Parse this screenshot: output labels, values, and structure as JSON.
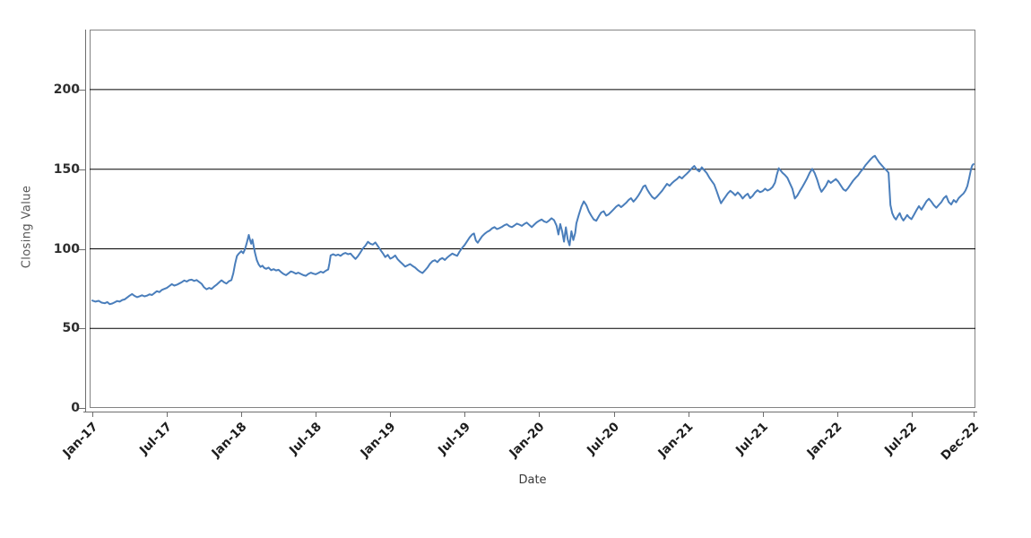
{
  "chart_data": {
    "type": "line",
    "title": "",
    "xlabel": "Date",
    "ylabel": "Closing Value",
    "legend": "none",
    "grid": "horizontal-only",
    "series_name": "Closing Value",
    "line_color": "#4a7ebb",
    "grid_color": "#000000",
    "frame_color": "#848484",
    "axis_color": "#6e6e6e",
    "x_unit": "months since Jan-2017",
    "xlim": [
      -0.22,
      71.15
    ],
    "ylim": [
      0,
      237.7
    ],
    "y_ticks": [
      {
        "v": 0,
        "label": "0"
      },
      {
        "v": 50,
        "label": "50"
      },
      {
        "v": 100,
        "label": "100"
      },
      {
        "v": 150,
        "label": "150"
      },
      {
        "v": 200,
        "label": "200"
      }
    ],
    "y_gridlines": [
      50,
      100,
      150,
      200
    ],
    "x_ticks": [
      {
        "m": 0,
        "label": "Jan-17"
      },
      {
        "m": 6,
        "label": "Jul-17"
      },
      {
        "m": 12,
        "label": "Jan-18"
      },
      {
        "m": 18,
        "label": "Jul-18"
      },
      {
        "m": 24,
        "label": "Jan-19"
      },
      {
        "m": 30,
        "label": "Jul-19"
      },
      {
        "m": 36,
        "label": "Jan-20"
      },
      {
        "m": 42,
        "label": "Jul-20"
      },
      {
        "m": 48,
        "label": "Jan-21"
      },
      {
        "m": 54,
        "label": "Jul-21"
      },
      {
        "m": 60,
        "label": "Jan-22"
      },
      {
        "m": 66,
        "label": "Jul-22"
      },
      {
        "m": 71,
        "label": "Dec-22"
      }
    ],
    "points": [
      [
        0,
        67.5
      ],
      [
        0.25,
        66.8
      ],
      [
        0.5,
        67.3
      ],
      [
        0.75,
        66.2
      ],
      [
        1,
        65.8
      ],
      [
        1.2,
        66.5
      ],
      [
        1.4,
        65.2
      ],
      [
        1.6,
        65.6
      ],
      [
        1.8,
        66.4
      ],
      [
        2,
        67.2
      ],
      [
        2.2,
        66.8
      ],
      [
        2.4,
        67.8
      ],
      [
        2.6,
        68.2
      ],
      [
        2.8,
        69.4
      ],
      [
        3,
        70.6
      ],
      [
        3.2,
        71.6
      ],
      [
        3.4,
        70.4
      ],
      [
        3.6,
        69.6
      ],
      [
        3.8,
        70.2
      ],
      [
        4,
        70.8
      ],
      [
        4.2,
        70.1
      ],
      [
        4.4,
        70.6
      ],
      [
        4.6,
        71.4
      ],
      [
        4.8,
        71
      ],
      [
        5,
        72.2
      ],
      [
        5.2,
        73.4
      ],
      [
        5.4,
        72.8
      ],
      [
        5.6,
        74.2
      ],
      [
        5.8,
        74.8
      ],
      [
        6,
        75.4
      ],
      [
        6.2,
        76.6
      ],
      [
        6.4,
        77.8
      ],
      [
        6.6,
        76.9
      ],
      [
        6.8,
        77.4
      ],
      [
        7,
        78.2
      ],
      [
        7.2,
        79
      ],
      [
        7.4,
        80.1
      ],
      [
        7.6,
        79.4
      ],
      [
        7.8,
        80.3
      ],
      [
        8,
        80.6
      ],
      [
        8.2,
        79.8
      ],
      [
        8.4,
        80.4
      ],
      [
        8.6,
        79.2
      ],
      [
        8.8,
        78
      ],
      [
        9,
        75.8
      ],
      [
        9.2,
        74.6
      ],
      [
        9.4,
        75.4
      ],
      [
        9.6,
        74.8
      ],
      [
        9.8,
        76.2
      ],
      [
        10,
        77.4
      ],
      [
        10.2,
        78.8
      ],
      [
        10.4,
        80.2
      ],
      [
        10.6,
        79
      ],
      [
        10.8,
        78.2
      ],
      [
        11,
        79.6
      ],
      [
        11.2,
        80.4
      ],
      [
        11.35,
        84.5
      ],
      [
        11.5,
        90.5
      ],
      [
        11.65,
        95.5
      ],
      [
        11.8,
        97
      ],
      [
        12,
        98.5
      ],
      [
        12.15,
        97.2
      ],
      [
        12.3,
        99.8
      ],
      [
        12.45,
        104
      ],
      [
        12.6,
        108.7
      ],
      [
        12.7,
        105.5
      ],
      [
        12.8,
        103.2
      ],
      [
        12.9,
        105.8
      ],
      [
        13,
        101.5
      ],
      [
        13.1,
        97.5
      ],
      [
        13.25,
        92.8
      ],
      [
        13.4,
        90.2
      ],
      [
        13.55,
        88.6
      ],
      [
        13.7,
        89.4
      ],
      [
        13.85,
        88
      ],
      [
        14,
        87.4
      ],
      [
        14.2,
        88.2
      ],
      [
        14.4,
        86.6
      ],
      [
        14.6,
        87.2
      ],
      [
        14.8,
        86.4
      ],
      [
        15,
        86.8
      ],
      [
        15.2,
        85.4
      ],
      [
        15.4,
        84.2
      ],
      [
        15.6,
        83.4
      ],
      [
        15.8,
        84.6
      ],
      [
        16,
        85.8
      ],
      [
        16.2,
        85.2
      ],
      [
        16.4,
        84.4
      ],
      [
        16.6,
        85
      ],
      [
        16.8,
        84.2
      ],
      [
        17,
        83.4
      ],
      [
        17.2,
        83
      ],
      [
        17.4,
        84.2
      ],
      [
        17.6,
        85
      ],
      [
        17.8,
        84.4
      ],
      [
        18,
        84
      ],
      [
        18.2,
        84.8
      ],
      [
        18.4,
        85.6
      ],
      [
        18.6,
        85
      ],
      [
        18.8,
        86.2
      ],
      [
        19,
        87
      ],
      [
        19.1,
        91
      ],
      [
        19.2,
        95.8
      ],
      [
        19.4,
        96.6
      ],
      [
        19.6,
        95.8
      ],
      [
        19.8,
        96.4
      ],
      [
        20,
        95.6
      ],
      [
        20.2,
        96.8
      ],
      [
        20.4,
        97.4
      ],
      [
        20.6,
        96.6
      ],
      [
        20.8,
        97
      ],
      [
        21,
        95.2
      ],
      [
        21.2,
        93.6
      ],
      [
        21.4,
        95.4
      ],
      [
        21.6,
        97.8
      ],
      [
        21.8,
        100.2
      ],
      [
        22,
        102
      ],
      [
        22.2,
        104.4
      ],
      [
        22.4,
        103.2
      ],
      [
        22.6,
        102.6
      ],
      [
        22.8,
        104
      ],
      [
        23,
        101.8
      ],
      [
        23.2,
        99.4
      ],
      [
        23.4,
        97.2
      ],
      [
        23.6,
        94.8
      ],
      [
        23.8,
        96.2
      ],
      [
        24,
        93.8
      ],
      [
        24.2,
        94.6
      ],
      [
        24.4,
        95.8
      ],
      [
        24.6,
        93.4
      ],
      [
        24.8,
        91.8
      ],
      [
        25,
        90.4
      ],
      [
        25.2,
        88.8
      ],
      [
        25.4,
        89.6
      ],
      [
        25.6,
        90.4
      ],
      [
        25.8,
        89.2
      ],
      [
        26,
        88.2
      ],
      [
        26.2,
        86.8
      ],
      [
        26.4,
        85.6
      ],
      [
        26.6,
        84.8
      ],
      [
        26.8,
        86.4
      ],
      [
        27,
        88.2
      ],
      [
        27.2,
        90.6
      ],
      [
        27.4,
        92.2
      ],
      [
        27.6,
        92.8
      ],
      [
        27.8,
        91.6
      ],
      [
        28,
        93.4
      ],
      [
        28.2,
        94.2
      ],
      [
        28.4,
        93
      ],
      [
        28.6,
        94.6
      ],
      [
        28.8,
        95.8
      ],
      [
        29,
        97
      ],
      [
        29.2,
        96.2
      ],
      [
        29.4,
        95.6
      ],
      [
        29.6,
        98.4
      ],
      [
        29.8,
        100.6
      ],
      [
        30,
        102.4
      ],
      [
        30.2,
        104.8
      ],
      [
        30.4,
        107.2
      ],
      [
        30.6,
        109
      ],
      [
        30.75,
        109.6
      ],
      [
        30.9,
        105.2
      ],
      [
        31.05,
        103.8
      ],
      [
        31.2,
        105.6
      ],
      [
        31.4,
        107.8
      ],
      [
        31.6,
        109.4
      ],
      [
        31.8,
        110.6
      ],
      [
        32,
        111.4
      ],
      [
        32.2,
        112.8
      ],
      [
        32.4,
        113.6
      ],
      [
        32.6,
        112.4
      ],
      [
        32.8,
        113
      ],
      [
        33,
        113.8
      ],
      [
        33.2,
        114.8
      ],
      [
        33.4,
        115.4
      ],
      [
        33.6,
        114.2
      ],
      [
        33.8,
        113.6
      ],
      [
        34,
        114.6
      ],
      [
        34.2,
        115.8
      ],
      [
        34.4,
        115.2
      ],
      [
        34.6,
        114.4
      ],
      [
        34.8,
        115.6
      ],
      [
        35,
        116.4
      ],
      [
        35.2,
        115
      ],
      [
        35.4,
        113.6
      ],
      [
        35.6,
        115.2
      ],
      [
        35.8,
        116.6
      ],
      [
        36,
        117.6
      ],
      [
        36.2,
        118.4
      ],
      [
        36.4,
        117.2
      ],
      [
        36.6,
        116.6
      ],
      [
        36.8,
        117.8
      ],
      [
        37,
        119.2
      ],
      [
        37.2,
        118
      ],
      [
        37.4,
        114.5
      ],
      [
        37.55,
        109
      ],
      [
        37.7,
        115.5
      ],
      [
        37.85,
        111
      ],
      [
        38,
        104.5
      ],
      [
        38.15,
        113.5
      ],
      [
        38.3,
        106
      ],
      [
        38.45,
        102.2
      ],
      [
        38.6,
        111
      ],
      [
        38.75,
        105.5
      ],
      [
        38.9,
        110
      ],
      [
        39,
        116
      ],
      [
        39.2,
        121.5
      ],
      [
        39.4,
        126.5
      ],
      [
        39.6,
        129.8
      ],
      [
        39.8,
        127.4
      ],
      [
        40,
        123.5
      ],
      [
        40.2,
        120.8
      ],
      [
        40.4,
        118.4
      ],
      [
        40.6,
        117.6
      ],
      [
        40.8,
        120.4
      ],
      [
        41,
        122.8
      ],
      [
        41.2,
        123.6
      ],
      [
        41.4,
        120.8
      ],
      [
        41.6,
        121.6
      ],
      [
        41.8,
        123.2
      ],
      [
        42,
        124.8
      ],
      [
        42.2,
        126.4
      ],
      [
        42.4,
        127.6
      ],
      [
        42.6,
        126.2
      ],
      [
        42.8,
        127.4
      ],
      [
        43,
        128.8
      ],
      [
        43.2,
        130.6
      ],
      [
        43.4,
        131.8
      ],
      [
        43.6,
        129.6
      ],
      [
        43.8,
        131.4
      ],
      [
        44,
        133.6
      ],
      [
        44.2,
        136.2
      ],
      [
        44.4,
        139.2
      ],
      [
        44.55,
        139.8
      ],
      [
        44.7,
        137.4
      ],
      [
        44.9,
        134.8
      ],
      [
        45.1,
        132.6
      ],
      [
        45.3,
        131.4
      ],
      [
        45.5,
        132.8
      ],
      [
        45.7,
        134.6
      ],
      [
        45.9,
        136.4
      ],
      [
        46.1,
        138.6
      ],
      [
        46.3,
        140.8
      ],
      [
        46.5,
        139.6
      ],
      [
        46.7,
        141.2
      ],
      [
        46.9,
        142.6
      ],
      [
        47.1,
        143.8
      ],
      [
        47.3,
        145.4
      ],
      [
        47.5,
        144.2
      ],
      [
        47.7,
        145.8
      ],
      [
        47.9,
        147.2
      ],
      [
        48.1,
        148.8
      ],
      [
        48.3,
        150.6
      ],
      [
        48.5,
        152
      ],
      [
        48.7,
        149.8
      ],
      [
        48.9,
        148.6
      ],
      [
        49.1,
        151.2
      ],
      [
        49.3,
        149.4
      ],
      [
        49.5,
        147.6
      ],
      [
        49.7,
        144.8
      ],
      [
        49.9,
        142.6
      ],
      [
        50.1,
        140.4
      ],
      [
        50.3,
        136.2
      ],
      [
        50.5,
        131.8
      ],
      [
        50.65,
        128.6
      ],
      [
        50.8,
        130.4
      ],
      [
        51,
        132.6
      ],
      [
        51.2,
        134.8
      ],
      [
        51.4,
        136.4
      ],
      [
        51.6,
        135.2
      ],
      [
        51.8,
        133.6
      ],
      [
        52,
        135.4
      ],
      [
        52.2,
        133.8
      ],
      [
        52.4,
        131.6
      ],
      [
        52.6,
        133.4
      ],
      [
        52.8,
        134.6
      ],
      [
        53,
        131.8
      ],
      [
        53.2,
        133.2
      ],
      [
        53.4,
        135.4
      ],
      [
        53.6,
        136.8
      ],
      [
        53.8,
        135.6
      ],
      [
        54,
        136.2
      ],
      [
        54.2,
        137.8
      ],
      [
        54.4,
        136.6
      ],
      [
        54.6,
        137.4
      ],
      [
        54.8,
        138.8
      ],
      [
        55,
        141.5
      ],
      [
        55.15,
        146.5
      ],
      [
        55.3,
        150.6
      ],
      [
        55.45,
        149.2
      ],
      [
        55.6,
        147.8
      ],
      [
        55.8,
        146.4
      ],
      [
        56,
        144.6
      ],
      [
        56.2,
        141.2
      ],
      [
        56.4,
        137.8
      ],
      [
        56.6,
        131.6
      ],
      [
        56.8,
        133.4
      ],
      [
        57,
        136.2
      ],
      [
        57.2,
        138.8
      ],
      [
        57.4,
        141.6
      ],
      [
        57.6,
        144.4
      ],
      [
        57.8,
        147.8
      ],
      [
        58,
        150.2
      ],
      [
        58.2,
        147.6
      ],
      [
        58.4,
        143.4
      ],
      [
        58.6,
        138.2
      ],
      [
        58.75,
        135.8
      ],
      [
        58.9,
        137.4
      ],
      [
        59.1,
        139.6
      ],
      [
        59.3,
        142.8
      ],
      [
        59.5,
        141.4
      ],
      [
        59.7,
        142.6
      ],
      [
        59.9,
        143.8
      ],
      [
        60.1,
        142.2
      ],
      [
        60.3,
        139.8
      ],
      [
        60.5,
        137.4
      ],
      [
        60.7,
        136.4
      ],
      [
        60.9,
        138.2
      ],
      [
        61.1,
        140.6
      ],
      [
        61.3,
        142.8
      ],
      [
        61.5,
        144.6
      ],
      [
        61.7,
        146.2
      ],
      [
        61.9,
        148.4
      ],
      [
        62.1,
        150.2
      ],
      [
        62.3,
        152.6
      ],
      [
        62.5,
        154.4
      ],
      [
        62.7,
        156.2
      ],
      [
        62.9,
        157.8
      ],
      [
        63.05,
        158.4
      ],
      [
        63.2,
        156.6
      ],
      [
        63.4,
        154.2
      ],
      [
        63.6,
        152.4
      ],
      [
        63.8,
        150.6
      ],
      [
        64,
        149.2
      ],
      [
        64.15,
        147.8
      ],
      [
        64.3,
        127.5
      ],
      [
        64.45,
        122.4
      ],
      [
        64.6,
        119.8
      ],
      [
        64.75,
        118.4
      ],
      [
        64.9,
        120.6
      ],
      [
        65.05,
        122.4
      ],
      [
        65.2,
        119.6
      ],
      [
        65.35,
        117.8
      ],
      [
        65.5,
        119.4
      ],
      [
        65.65,
        121.2
      ],
      [
        65.8,
        119.8
      ],
      [
        66,
        118.6
      ],
      [
        66.2,
        121.4
      ],
      [
        66.4,
        124.2
      ],
      [
        66.6,
        126.8
      ],
      [
        66.8,
        124.6
      ],
      [
        67,
        127.2
      ],
      [
        67.2,
        129.8
      ],
      [
        67.4,
        131.4
      ],
      [
        67.6,
        129.6
      ],
      [
        67.8,
        127.4
      ],
      [
        68,
        125.8
      ],
      [
        68.2,
        127.6
      ],
      [
        68.4,
        129.2
      ],
      [
        68.6,
        131.8
      ],
      [
        68.8,
        133.2
      ],
      [
        69,
        129.4
      ],
      [
        69.2,
        127.8
      ],
      [
        69.4,
        130.6
      ],
      [
        69.6,
        129.2
      ],
      [
        69.8,
        131.8
      ],
      [
        70,
        133.4
      ],
      [
        70.2,
        134.8
      ],
      [
        70.35,
        136.6
      ],
      [
        70.5,
        139.4
      ],
      [
        70.65,
        144.6
      ],
      [
        70.8,
        150.2
      ],
      [
        70.9,
        152.4
      ],
      [
        71,
        153.2
      ]
    ]
  }
}
